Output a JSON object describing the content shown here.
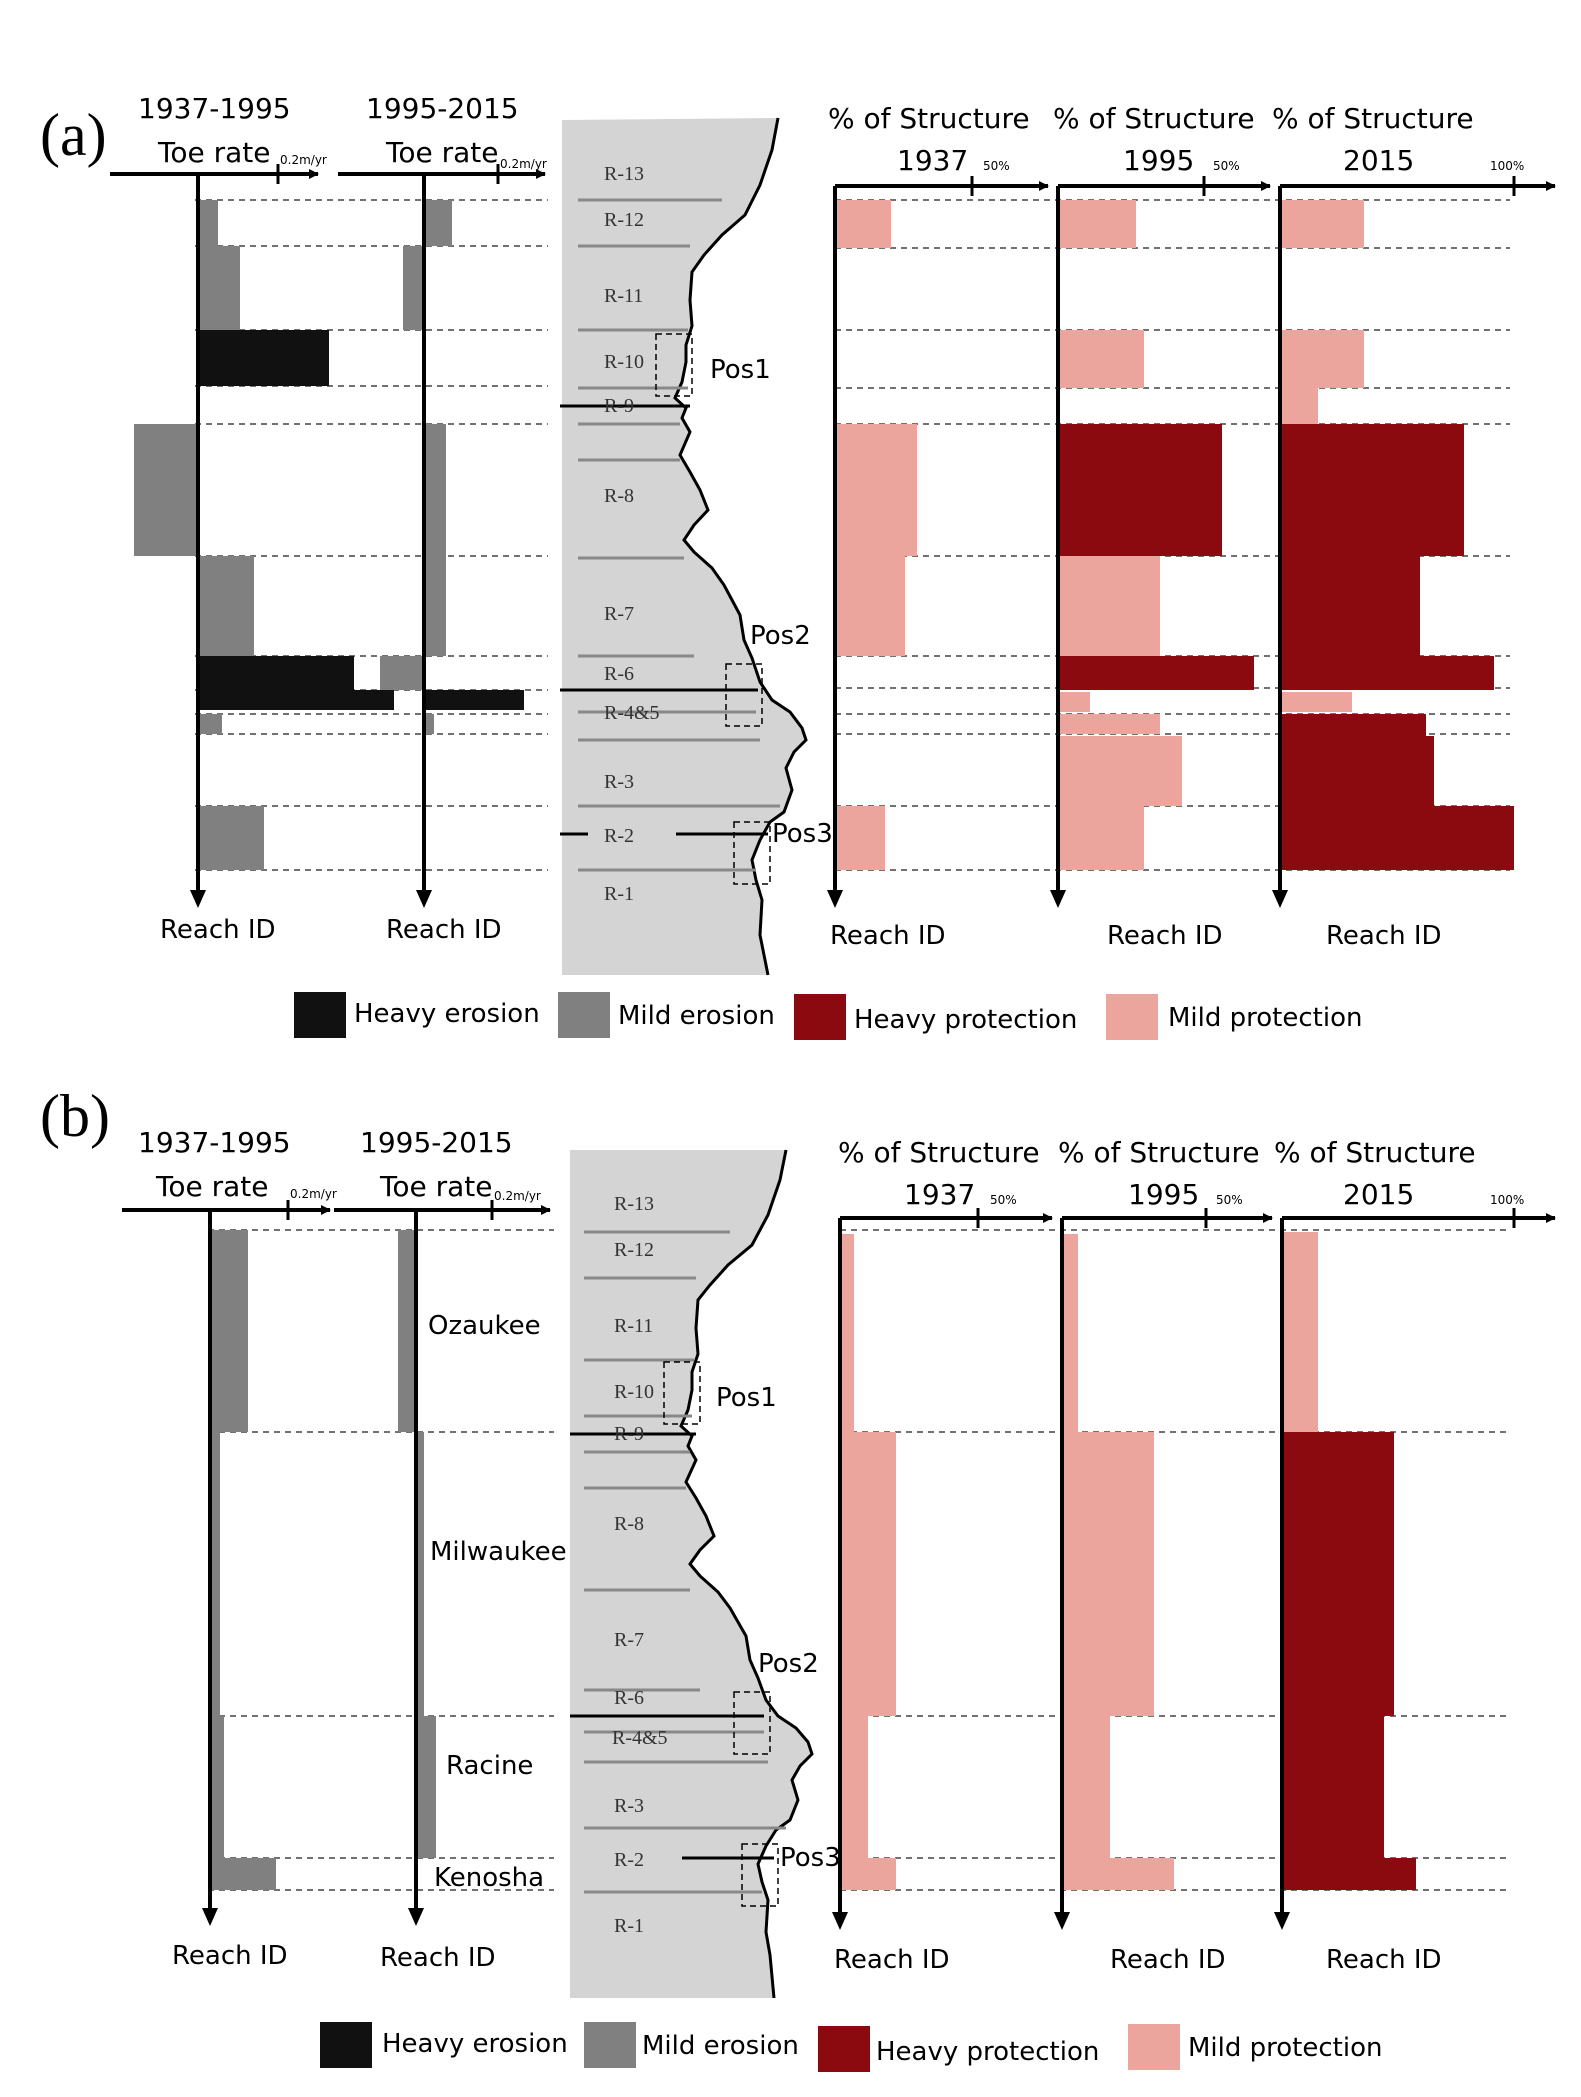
{
  "colors": {
    "heavy_erosion": "#111111",
    "mild_erosion": "#808080",
    "heavy_protection": "#8b0a0f",
    "mild_protection": "#eba59c",
    "shore": "#d4d4d4"
  },
  "legend": [
    "Heavy erosion",
    "Mild erosion",
    "Heavy protection",
    "Mild protection"
  ],
  "reach_labels": [
    "R-13",
    "R-12",
    "R-11",
    "R-10",
    "R-9",
    "R-8",
    "R-7",
    "R-6",
    "R-4&5",
    "R-3",
    "R-2",
    "R-1"
  ],
  "pos_labels": [
    "Pos1",
    "Pos2",
    "Pos3"
  ],
  "county_labels": [
    "Ozaukee",
    "Milwaukee",
    "Racine",
    "Kenosha"
  ],
  "axis_titles": {
    "toe1_line1": "1937-1995",
    "toe2_line1": "1995-2015",
    "toe_line2": "Toe rate",
    "toe_unit": "0.2m/yr",
    "struct_line1": "% of Structure",
    "y1937": "1937",
    "y1995": "1995",
    "y2015": "2015",
    "tick50": "50%",
    "tick100": "100%",
    "reach_id": "Reach ID"
  },
  "panels": [
    {
      "label": "(a)",
      "toe_rate_1937_1995": [
        {
          "reach": "R-12",
          "type": "mild",
          "value_m_per_yr": 0.02
        },
        {
          "reach": "R-11",
          "type": "mild",
          "value_m_per_yr": 0.05
        },
        {
          "reach": "R-10",
          "type": "heavy",
          "value_m_per_yr": 0.16
        },
        {
          "reach": "R-8",
          "type": "mild",
          "value_m_per_yr": -0.08
        },
        {
          "reach": "R-7",
          "type": "mild",
          "value_m_per_yr": 0.07
        },
        {
          "reach": "R-6",
          "type": "heavy",
          "value_m_per_yr": 0.2
        },
        {
          "reach": "R-4&5",
          "type": "heavy",
          "value_m_per_yr": 0.24
        },
        {
          "reach": "R-4&5",
          "type": "mild",
          "value_m_per_yr": 0.03
        },
        {
          "reach": "R-2",
          "type": "mild",
          "value_m_per_yr": 0.08
        }
      ],
      "toe_rate_1995_2015": [
        {
          "reach": "R-12",
          "type": "mild",
          "value_m_per_yr": 0.04
        },
        {
          "reach": "R-11",
          "type": "mild",
          "value_m_per_yr": -0.03
        },
        {
          "reach": "R-8",
          "type": "mild",
          "value_m_per_yr": 0.03
        },
        {
          "reach": "R-7",
          "type": "mild",
          "value_m_per_yr": 0.03
        },
        {
          "reach": "R-6",
          "type": "mild",
          "value_m_per_yr": -0.06
        },
        {
          "reach": "R-4&5",
          "type": "heavy",
          "value_m_per_yr": 0.14
        },
        {
          "reach": "R-4&5",
          "type": "mild",
          "value_m_per_yr": 0.01
        }
      ],
      "structure_1937_pct": [
        {
          "reach": "R-12",
          "type": "mild",
          "value": 22
        },
        {
          "reach": "R-8",
          "type": "mild",
          "value": 31
        },
        {
          "reach": "R-7",
          "type": "mild",
          "value": 27
        },
        {
          "reach": "R-2",
          "type": "mild",
          "value": 19
        }
      ],
      "structure_1995_pct": [
        {
          "reach": "R-12",
          "type": "mild",
          "value": 30
        },
        {
          "reach": "R-10",
          "type": "mild",
          "value": 33
        },
        {
          "reach": "R-8",
          "type": "heavy",
          "value": 63
        },
        {
          "reach": "R-7",
          "type": "mild",
          "value": 39
        },
        {
          "reach": "R-6",
          "type": "heavy",
          "value": 75
        },
        {
          "reach": "R-4&5",
          "type": "mild",
          "value": 12
        },
        {
          "reach": "R-4&5",
          "type": "mild",
          "value": 39
        },
        {
          "reach": "R-3",
          "type": "mild",
          "value": 47
        },
        {
          "reach": "R-2",
          "type": "mild",
          "value": 33
        }
      ],
      "structure_2015_pct": [
        {
          "reach": "R-12",
          "type": "mild",
          "value": 34
        },
        {
          "reach": "R-10",
          "type": "mild",
          "value": 34
        },
        {
          "reach": "R-9",
          "type": "mild",
          "value": 16
        },
        {
          "reach": "R-8",
          "type": "heavy",
          "value": 75
        },
        {
          "reach": "R-7",
          "type": "heavy",
          "value": 57
        },
        {
          "reach": "R-6",
          "type": "heavy",
          "value": 88
        },
        {
          "reach": "R-4&5",
          "type": "mild",
          "value": 29
        },
        {
          "reach": "R-4&5",
          "type": "heavy",
          "value": 59
        },
        {
          "reach": "R-3",
          "type": "heavy",
          "value": 62
        },
        {
          "reach": "R-2",
          "type": "heavy",
          "value": 96
        }
      ]
    },
    {
      "label": "(b)",
      "toe_rate_1937_1995": [
        {
          "county": "Ozaukee",
          "type": "mild",
          "value_m_per_yr": 0.05
        },
        {
          "county": "Milwaukee",
          "type": "mild",
          "value_m_per_yr": 0.01
        },
        {
          "county": "Racine",
          "type": "mild",
          "value_m_per_yr": 0.02
        },
        {
          "county": "Kenosha",
          "type": "mild",
          "value_m_per_yr": 0.08
        }
      ],
      "toe_rate_1995_2015": [
        {
          "county": "Ozaukee",
          "type": "mild",
          "value_m_per_yr": -0.02
        },
        {
          "county": "Milwaukee",
          "type": "mild",
          "value_m_per_yr": 0.01
        },
        {
          "county": "Racine",
          "type": "mild",
          "value_m_per_yr": 0.02
        }
      ],
      "structure_1937_pct": [
        {
          "county": "Ozaukee",
          "type": "mild",
          "value": 3
        },
        {
          "county": "Milwaukee",
          "type": "mild",
          "value": 12
        },
        {
          "county": "Racine",
          "type": "mild",
          "value": 6
        },
        {
          "county": "Kenosha",
          "type": "mild",
          "value": 12
        }
      ],
      "structure_1995_pct": [
        {
          "county": "Ozaukee",
          "type": "mild",
          "value": 4
        },
        {
          "county": "Milwaukee",
          "type": "mild",
          "value": 21
        },
        {
          "county": "Racine",
          "type": "mild",
          "value": 11
        },
        {
          "county": "Kenosha",
          "type": "mild",
          "value": 26
        }
      ],
      "structure_2015_pct": [
        {
          "county": "Ozaukee",
          "type": "mild",
          "value": 13
        },
        {
          "county": "Milwaukee",
          "type": "heavy",
          "value": 42
        },
        {
          "county": "Racine",
          "type": "heavy",
          "value": 39
        },
        {
          "county": "Kenosha",
          "type": "heavy",
          "value": 51
        }
      ]
    }
  ]
}
